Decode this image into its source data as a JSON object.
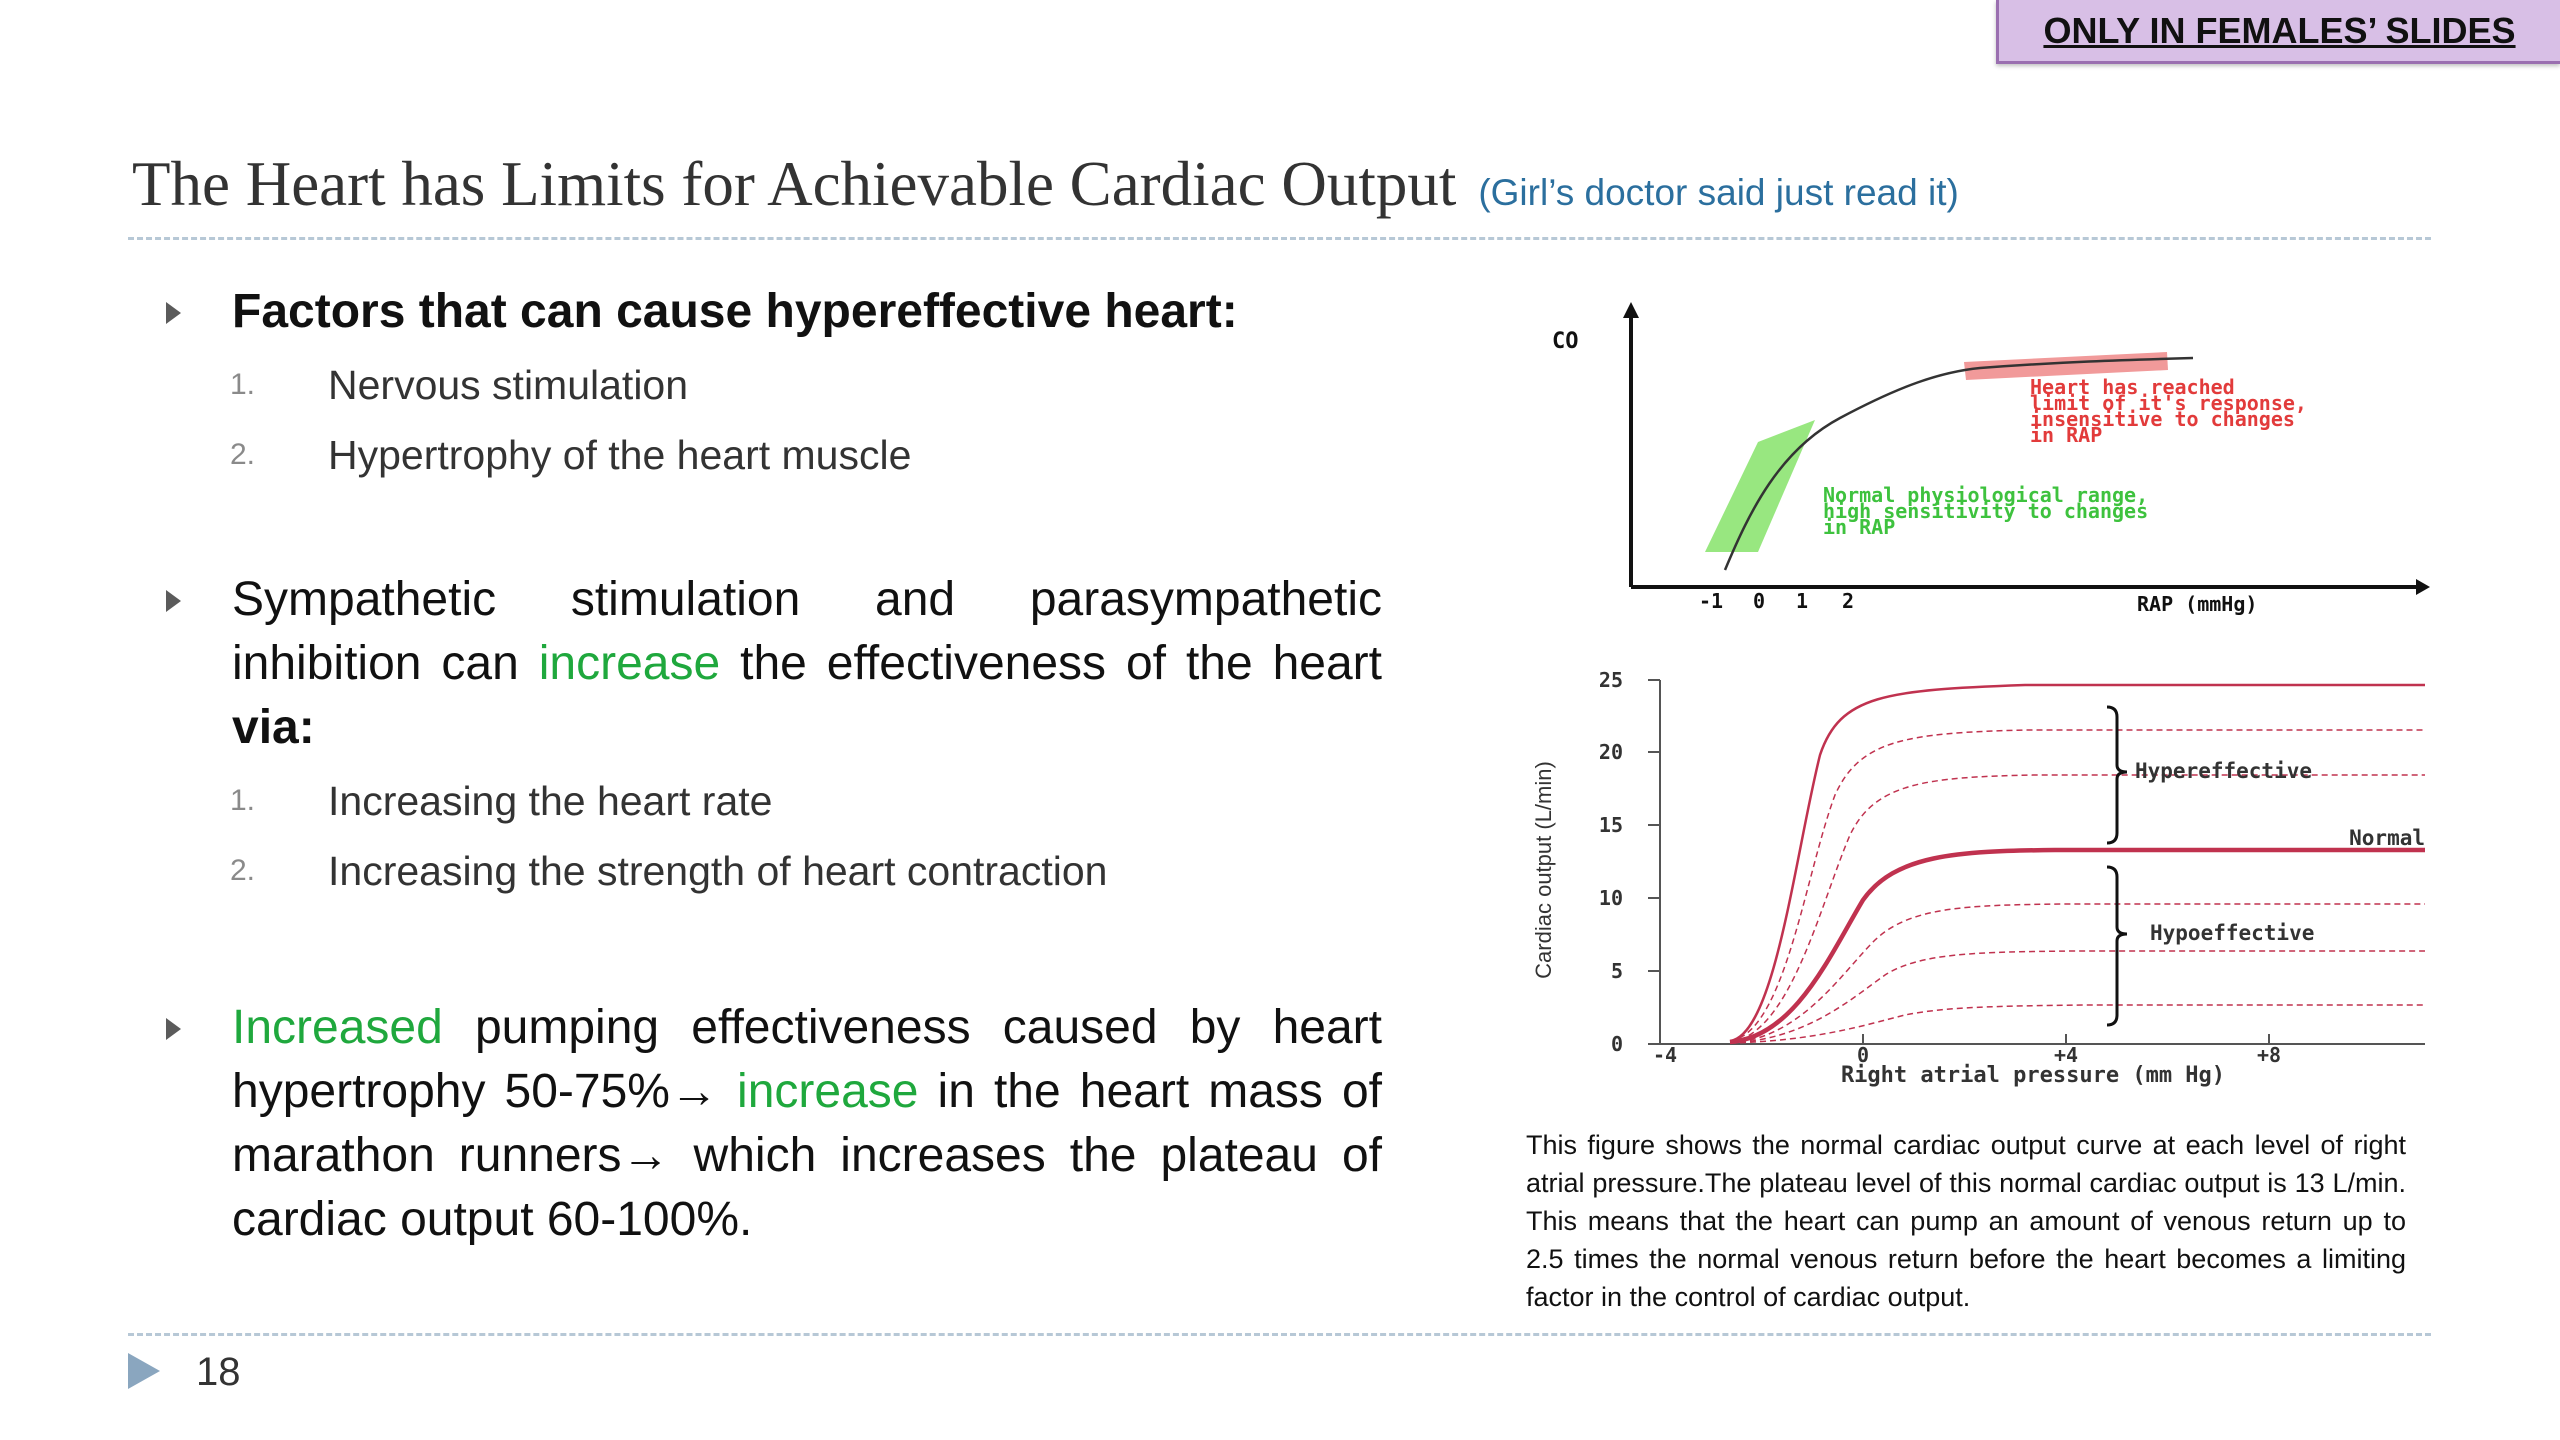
{
  "badge": {
    "label": "ONLY IN FEMALES’ SLIDES"
  },
  "slide": {
    "title": "The Heart has Limits for Achievable Cardiac Output",
    "subtitle": "(Girl’s doctor said just read it)",
    "page_number": "18"
  },
  "bullets": {
    "b1": {
      "text": "Factors that can cause hypereffective heart:",
      "items": [
        {
          "num": "1.",
          "text": "Nervous stimulation"
        },
        {
          "num": "2.",
          "text": "Hypertrophy of the heart muscle"
        }
      ]
    },
    "b2": {
      "part1": "Sympathetic stimulation and parasympathetic inhibition can ",
      "highlight": "increase",
      "part2": " the effectiveness of the heart ",
      "bold_end": "via:",
      "items": [
        {
          "num": "1.",
          "text": "Increasing the heart rate"
        },
        {
          "num": "2.",
          "text": "Increasing the strength of heart contraction"
        }
      ]
    },
    "b3": {
      "highlight1": "Increased",
      "part1": " pumping effectiveness caused by heart hypertrophy 50-75%→ ",
      "highlight2": "increase",
      "part2": " in the heart mass of marathon runners→ which increases the plateau of cardiac output 60-100%."
    }
  },
  "figure_top": {
    "y_label": "CO",
    "x_label": "RAP (mmHg)",
    "x_ticks": [
      "-1",
      "0",
      "1",
      "2"
    ],
    "red_note": [
      "Heart has reached",
      "limit of it's response,",
      "insensitive to changes",
      "in RAP"
    ],
    "green_note": [
      "Normal physiological range,",
      "high sensitivity to changes",
      "in RAP"
    ],
    "colors": {
      "red": "#e23b3b",
      "green": "#3ec23e",
      "red_band": "#f19a9a",
      "green_band": "#86e36a"
    }
  },
  "figure_bottom": {
    "y_label": "Cardiac output (L/min)",
    "x_label": "Right atrial pressure (mm Hg)",
    "y_ticks": [
      "25",
      "20",
      "15",
      "10",
      "5",
      "0"
    ],
    "x_ticks": [
      "-4",
      "0",
      "+4",
      "+8"
    ],
    "labels": {
      "hyper": "Hypereffective",
      "normal": "Normal",
      "hypo": "Hypoeffective"
    },
    "colors": {
      "curve": "#c0324f"
    }
  },
  "caption": "This figure shows the normal cardiac output curve at each level of right atrial pressure.The plateau level of this normal cardiac output is 13 L/min. This means that the heart can pump an amount of venous return up to 2.5 times the normal venous return before the heart becomes a limiting factor in the control of cardiac output."
}
